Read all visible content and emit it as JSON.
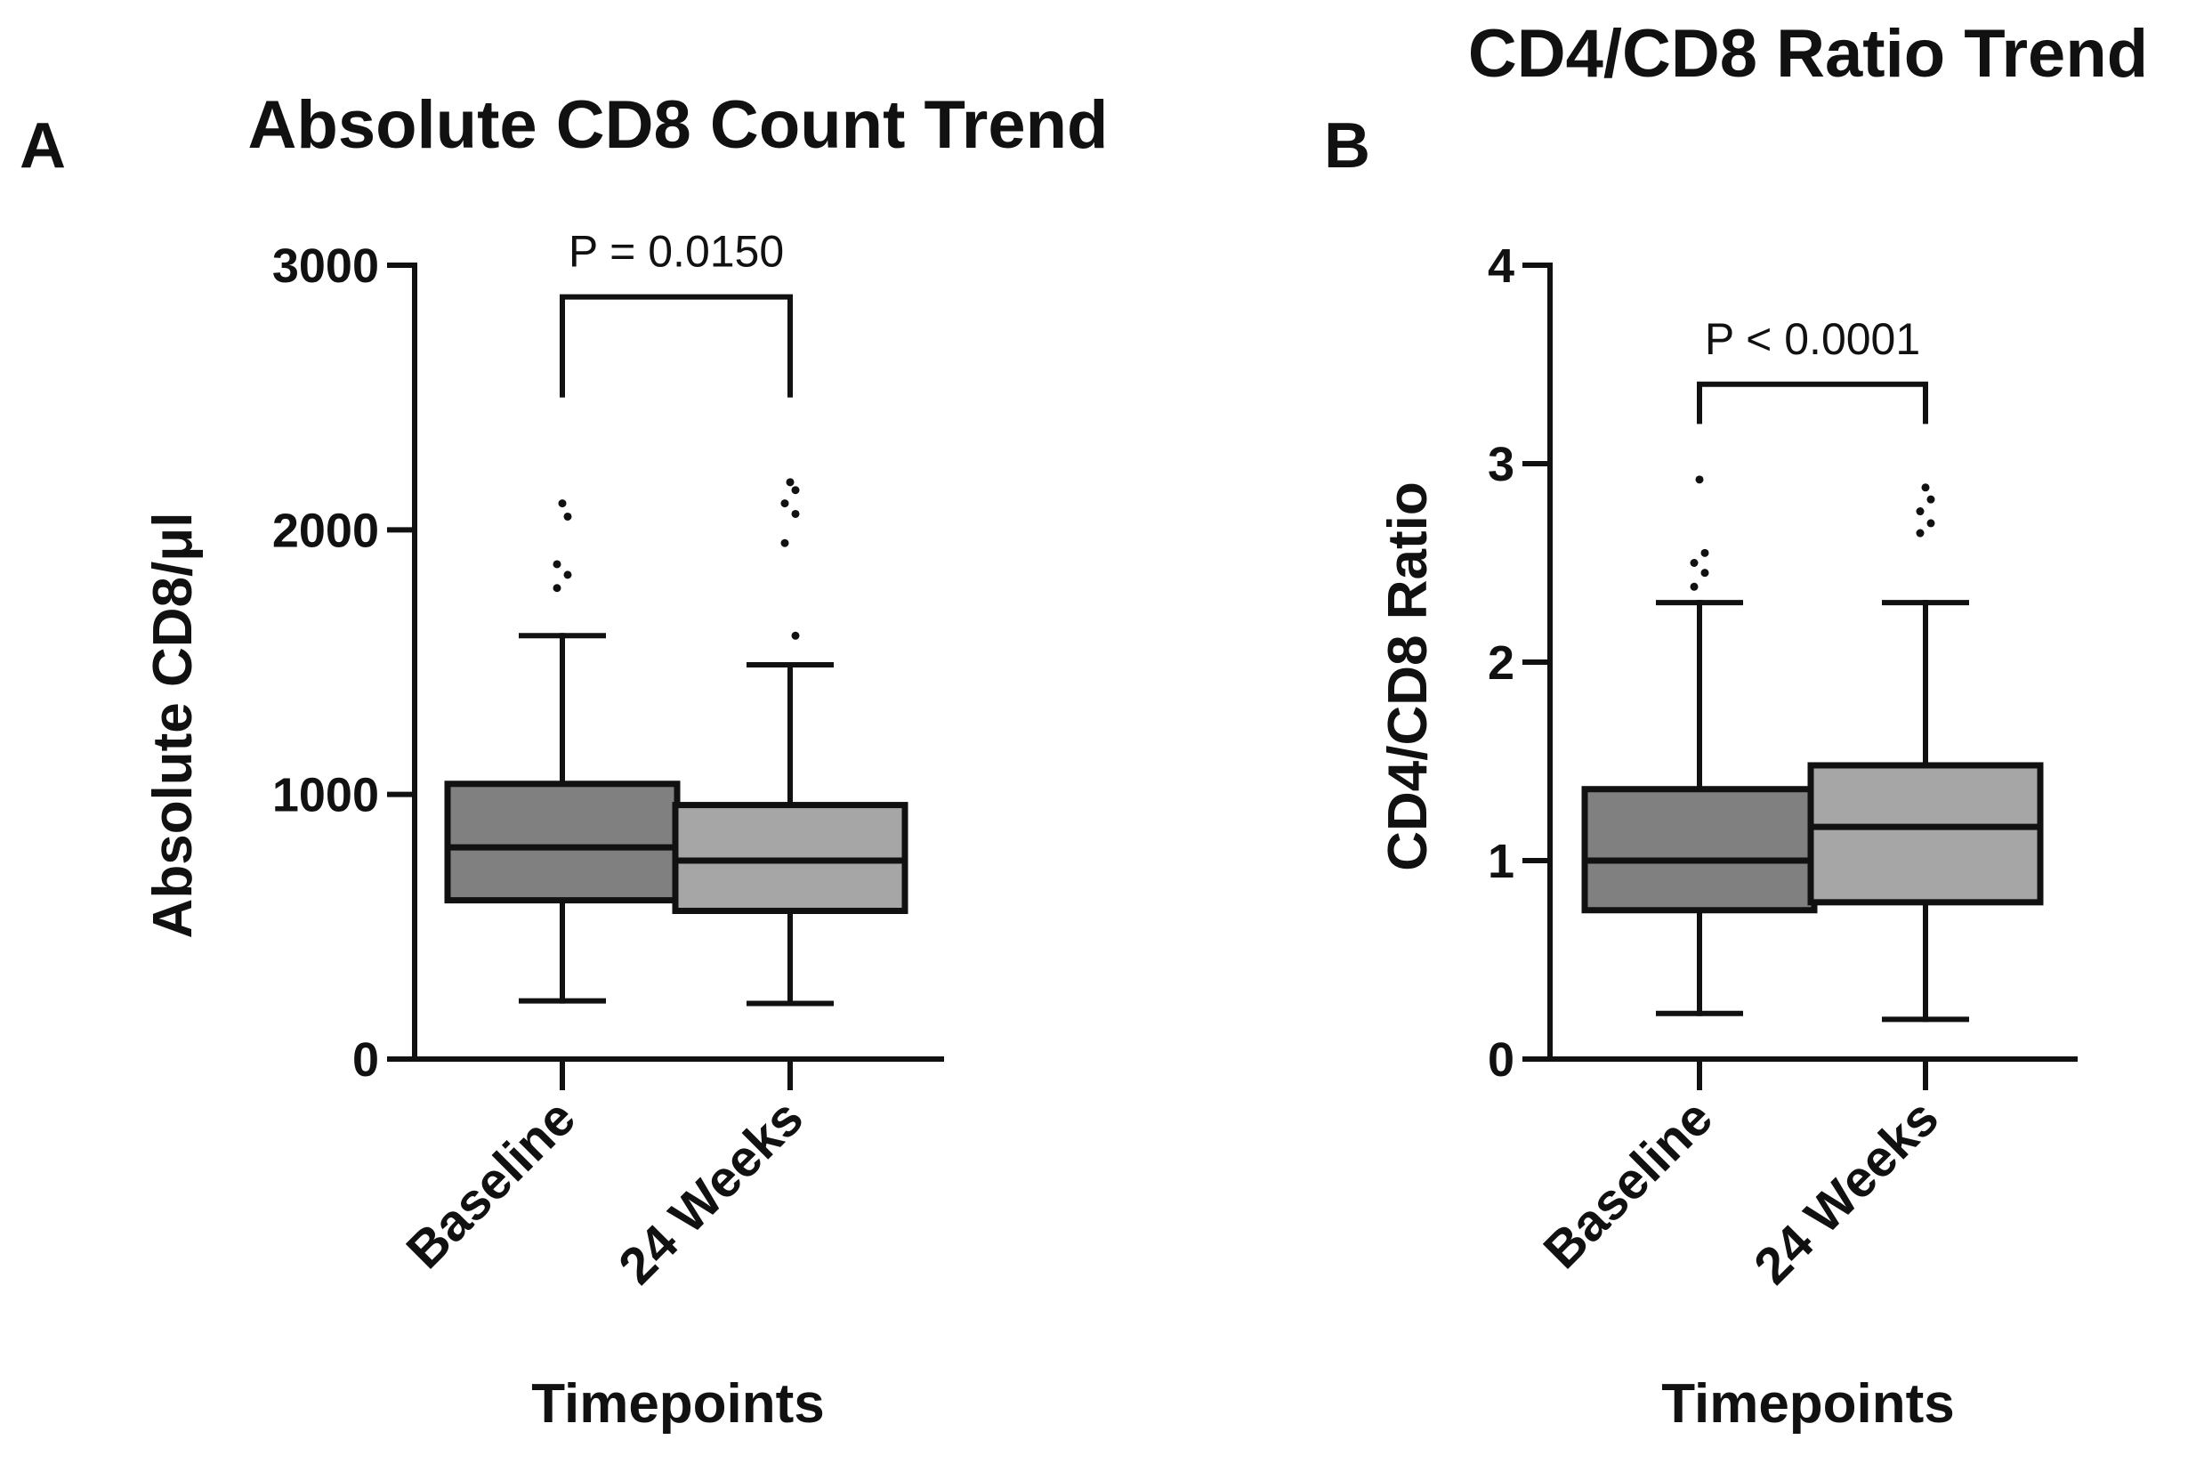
{
  "chart_data": [
    {
      "panel": "A",
      "type": "box",
      "title": "Absolute CD8 Count Trend",
      "xlabel": "Timepoints",
      "ylabel": "Absolute CD8/μl",
      "ylim": [
        0,
        3000
      ],
      "yticks": [
        0,
        1000,
        2000,
        3000
      ],
      "categories": [
        "Baseline",
        "24 Weeks"
      ],
      "boxes": [
        {
          "category": "Baseline",
          "min": 220,
          "q1": 600,
          "median": 800,
          "q3": 1040,
          "max": 1600,
          "color": "#808080",
          "outliers": [
            2100,
            2050,
            1870,
            1830,
            1780
          ]
        },
        {
          "category": "24 Weeks",
          "min": 210,
          "q1": 560,
          "median": 750,
          "q3": 960,
          "max": 1490,
          "color": "#a6a6a6",
          "outliers": [
            2180,
            2150,
            2100,
            2060,
            1950,
            1600
          ]
        }
      ],
      "comparison": {
        "label": "P = 0.0150",
        "y": 2880,
        "drop_to": 2500
      }
    },
    {
      "panel": "B",
      "type": "box",
      "title": "CD4/CD8 Ratio Trend",
      "xlabel": "Timepoints",
      "ylabel": "CD4/CD8 Ratio",
      "ylim": [
        0,
        4
      ],
      "yticks": [
        0,
        1,
        2,
        3,
        4
      ],
      "categories": [
        "Baseline",
        "24 Weeks"
      ],
      "boxes": [
        {
          "category": "Baseline",
          "min": 0.23,
          "q1": 0.75,
          "median": 1.0,
          "q3": 1.36,
          "max": 2.3,
          "color": "#808080",
          "outliers": [
            2.92,
            2.55,
            2.5,
            2.45,
            2.38
          ]
        },
        {
          "category": "24 Weeks",
          "min": 0.2,
          "q1": 0.79,
          "median": 1.17,
          "q3": 1.48,
          "max": 2.3,
          "color": "#a6a6a6",
          "outliers": [
            2.88,
            2.82,
            2.76,
            2.7,
            2.65
          ]
        }
      ],
      "comparison": {
        "label": "P < 0.0001",
        "y": 3.4,
        "drop_to": 3.2
      }
    }
  ]
}
